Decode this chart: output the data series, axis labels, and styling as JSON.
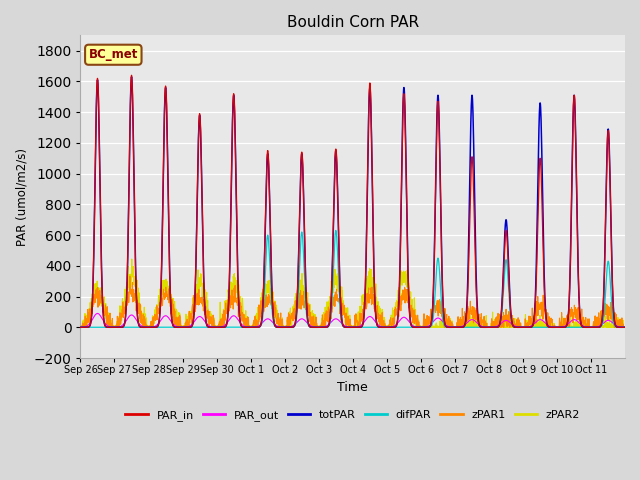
{
  "title": "Bouldin Corn PAR",
  "xlabel": "Time",
  "ylabel": "PAR (umol/m2/s)",
  "ylim": [
    -200,
    1900
  ],
  "yticks": [
    -200,
    0,
    200,
    400,
    600,
    800,
    1000,
    1200,
    1400,
    1600,
    1800
  ],
  "bg_color": "#e8e8e8",
  "fig_color": "#d8d8d8",
  "legend_label": "BC_met",
  "legend_bg": "#ffff99",
  "legend_border": "#8b4513",
  "series_colors": {
    "PAR_in": "#dd0000",
    "PAR_out": "#ff00ff",
    "totPAR": "#0000cc",
    "difPAR": "#00cccc",
    "zPAR1": "#ff8800",
    "zPAR2": "#dddd00"
  },
  "x_labels": [
    "Sep 26",
    "Sep 27",
    "Sep 28",
    "Sep 29",
    "Sep 30",
    "Oct 1",
    "Oct 2",
    "Oct 3",
    "Oct 4",
    "Oct 5",
    "Oct 6",
    "Oct 7",
    "Oct 8",
    "Oct 9",
    "Oct 10",
    "Oct 11"
  ],
  "par_in_peaks": [
    1620,
    1640,
    1570,
    1390,
    1520,
    1150,
    1140,
    1160,
    1590,
    1520,
    1470,
    1110,
    630,
    1100,
    1510,
    1280
  ],
  "tot_par_peaks": [
    1610,
    1630,
    1560,
    1380,
    1510,
    1130,
    1130,
    1150,
    1560,
    1560,
    1510,
    1510,
    700,
    1460,
    1510,
    1290
  ],
  "dif_par_peaks": [
    0,
    0,
    0,
    0,
    0,
    600,
    620,
    630,
    0,
    0,
    450,
    0,
    440,
    0,
    0,
    430
  ],
  "par_out_peaks": [
    90,
    80,
    75,
    70,
    75,
    55,
    55,
    55,
    70,
    65,
    60,
    50,
    45,
    50,
    50,
    45
  ],
  "zpar1_peaks": [
    210,
    225,
    215,
    190,
    200,
    185,
    185,
    185,
    195,
    210,
    130,
    95,
    60,
    130,
    100,
    110
  ],
  "zpar2_peaks": [
    250,
    340,
    285,
    290,
    290,
    255,
    250,
    305,
    310,
    330,
    0,
    0,
    0,
    0,
    0,
    0
  ]
}
